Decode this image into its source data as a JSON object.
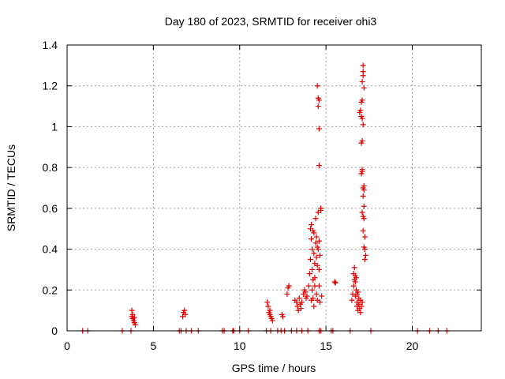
{
  "chart_data": {
    "type": "scatter",
    "title": "Day 180 of 2023, SRMTID for receiver ohi3",
    "xlabel": "GPS time / hours",
    "ylabel": "SRMTID / TECUs",
    "xlim": [
      0,
      24
    ],
    "ylim": [
      0,
      1.4
    ],
    "xticks": [
      0,
      5,
      10,
      15,
      20
    ],
    "xtick_labels": [
      "0",
      "5",
      "10",
      "15",
      "20"
    ],
    "yticks": [
      0,
      0.2,
      0.4,
      0.6,
      0.8,
      1.0,
      1.2,
      1.4
    ],
    "ytick_labels": [
      "0",
      "0.2",
      "0.4",
      "0.6",
      "0.8",
      "1",
      "1.2",
      "1.4"
    ],
    "grid": true,
    "marker": "+",
    "color": "#e00000",
    "series": [
      {
        "name": "SRMTID",
        "points": [
          [
            0.9,
            0
          ],
          [
            1.2,
            0
          ],
          [
            3.2,
            0
          ],
          [
            3.7,
            0
          ],
          [
            3.75,
            0.1
          ],
          [
            3.75,
            0.07
          ],
          [
            3.8,
            0.06
          ],
          [
            3.85,
            0.05
          ],
          [
            3.9,
            0.04
          ],
          [
            3.95,
            0.03
          ],
          [
            3.8,
            0.08
          ],
          [
            3.9,
            0.065
          ],
          [
            6.5,
            0
          ],
          [
            6.6,
            0
          ],
          [
            6.7,
            0.07
          ],
          [
            6.75,
            0.09
          ],
          [
            6.8,
            0.1
          ],
          [
            6.85,
            0.08
          ],
          [
            6.9,
            0
          ],
          [
            7.2,
            0
          ],
          [
            7.6,
            0
          ],
          [
            9.0,
            0
          ],
          [
            9.1,
            0
          ],
          [
            9.6,
            0
          ],
          [
            9.65,
            0
          ],
          [
            10.0,
            0
          ],
          [
            10.5,
            0
          ],
          [
            11.55,
            0
          ],
          [
            11.6,
            0.14
          ],
          [
            11.65,
            0.12
          ],
          [
            11.7,
            0.09
          ],
          [
            11.75,
            0.08
          ],
          [
            11.8,
            0.07
          ],
          [
            11.85,
            0.06
          ],
          [
            11.9,
            0.05
          ],
          [
            11.75,
            0.1
          ],
          [
            11.8,
            0
          ],
          [
            12.2,
            0
          ],
          [
            12.4,
            0
          ],
          [
            12.45,
            0.08
          ],
          [
            12.5,
            0.07
          ],
          [
            12.6,
            0
          ],
          [
            12.75,
            0.18
          ],
          [
            12.8,
            0.21
          ],
          [
            12.85,
            0.22
          ],
          [
            13.0,
            0
          ],
          [
            13.2,
            0.15
          ],
          [
            13.3,
            0.14
          ],
          [
            13.35,
            0.12
          ],
          [
            13.4,
            0.1
          ],
          [
            13.45,
            0.16
          ],
          [
            13.5,
            0.13
          ],
          [
            13.55,
            0.11
          ],
          [
            13.6,
            0.14
          ],
          [
            13.3,
            0
          ],
          [
            13.6,
            0
          ],
          [
            13.7,
            0.18
          ],
          [
            13.75,
            0.2
          ],
          [
            13.8,
            0.19
          ],
          [
            13.85,
            0.16
          ],
          [
            13.9,
            0.17
          ],
          [
            13.95,
            0
          ],
          [
            14.0,
            0.22
          ],
          [
            14.05,
            0.28
          ],
          [
            14.1,
            0.35
          ],
          [
            14.1,
            0.5
          ],
          [
            14.15,
            0.52
          ],
          [
            14.15,
            0.45
          ],
          [
            14.2,
            0.4
          ],
          [
            14.2,
            0.3
          ],
          [
            14.25,
            0.25
          ],
          [
            14.25,
            0.49
          ],
          [
            14.3,
            0.48
          ],
          [
            14.3,
            0.38
          ],
          [
            14.35,
            0.26
          ],
          [
            14.35,
            0.33
          ],
          [
            14.4,
            0.43
          ],
          [
            14.4,
            0.55
          ],
          [
            14.45,
            0.46
          ],
          [
            14.45,
            0.36
          ],
          [
            14.5,
            0.32
          ],
          [
            14.5,
            0.41
          ],
          [
            14.55,
            0.4
          ],
          [
            14.55,
            0.58
          ],
          [
            14.6,
            0.44
          ],
          [
            14.6,
            0.3
          ],
          [
            14.65,
            0.37
          ],
          [
            14.7,
            0.59
          ],
          [
            14.7,
            0.6
          ],
          [
            14.15,
            0.15
          ],
          [
            14.2,
            0.2
          ],
          [
            14.25,
            0.16
          ],
          [
            14.3,
            0.12
          ],
          [
            14.35,
            0.22
          ],
          [
            14.45,
            0.18
          ],
          [
            14.5,
            0.15
          ],
          [
            14.6,
            0.22
          ],
          [
            14.65,
            0.14
          ],
          [
            14.75,
            0.17
          ],
          [
            14.5,
            1.2
          ],
          [
            14.55,
            1.14
          ],
          [
            14.6,
            1.13
          ],
          [
            14.55,
            1.1
          ],
          [
            14.6,
            0.99
          ],
          [
            14.6,
            0.81
          ],
          [
            14.6,
            0
          ],
          [
            14.7,
            0
          ],
          [
            15.5,
            0.24
          ],
          [
            15.55,
            0.235
          ],
          [
            15.3,
            0
          ],
          [
            15.4,
            0
          ],
          [
            16.4,
            0
          ],
          [
            16.5,
            0.15
          ],
          [
            16.55,
            0.18
          ],
          [
            16.6,
            0.22
          ],
          [
            16.6,
            0.28
          ],
          [
            16.65,
            0.25
          ],
          [
            16.7,
            0.27
          ],
          [
            16.7,
            0.17
          ],
          [
            16.75,
            0.2
          ],
          [
            16.8,
            0.14
          ],
          [
            16.8,
            0.12
          ],
          [
            16.85,
            0.1
          ],
          [
            16.9,
            0.16
          ],
          [
            16.9,
            0.13
          ],
          [
            16.95,
            0.11
          ],
          [
            17.0,
            0.09
          ],
          [
            17.0,
            0.15
          ],
          [
            17.05,
            0.12
          ],
          [
            17.1,
            0.14
          ],
          [
            16.65,
            0.31
          ],
          [
            16.7,
            0.24
          ],
          [
            16.75,
            0.26
          ],
          [
            16.8,
            0.18
          ],
          [
            16.85,
            0.19
          ],
          [
            16.95,
            1.07
          ],
          [
            17.0,
            1.08
          ],
          [
            17.05,
            1.05
          ],
          [
            17.05,
            1.12
          ],
          [
            17.1,
            1.13
          ],
          [
            17.1,
            1.22
          ],
          [
            17.15,
            1.25
          ],
          [
            17.15,
            1.27
          ],
          [
            17.15,
            1.3
          ],
          [
            17.2,
            1.19
          ],
          [
            17.15,
            1.01
          ],
          [
            17.1,
            1.04
          ],
          [
            17.05,
            0.92
          ],
          [
            17.1,
            0.93
          ],
          [
            17.05,
            0.77
          ],
          [
            17.1,
            0.78
          ],
          [
            17.1,
            0.79
          ],
          [
            17.15,
            0.7
          ],
          [
            17.2,
            0.71
          ],
          [
            17.2,
            0.69
          ],
          [
            17.2,
            0.61
          ],
          [
            17.15,
            0.66
          ],
          [
            17.1,
            0.58
          ],
          [
            17.15,
            0.56
          ],
          [
            17.2,
            0.55
          ],
          [
            17.15,
            0.49
          ],
          [
            17.25,
            0.46
          ],
          [
            17.2,
            0.41
          ],
          [
            17.25,
            0.4
          ],
          [
            17.3,
            0.37
          ],
          [
            17.25,
            0.35
          ],
          [
            17.6,
            0
          ],
          [
            20.3,
            0
          ],
          [
            21.0,
            0
          ],
          [
            21.5,
            0
          ],
          [
            22.0,
            0
          ]
        ]
      }
    ]
  }
}
